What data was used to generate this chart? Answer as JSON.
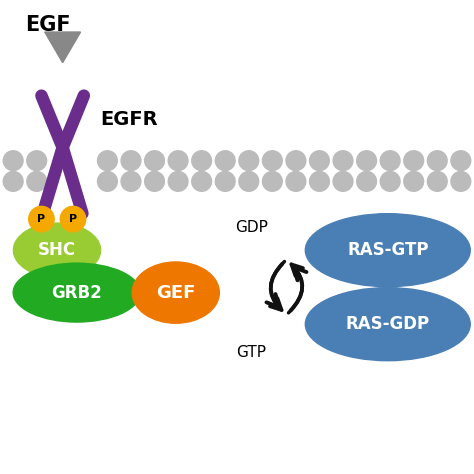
{
  "bg_color": "#ffffff",
  "egf_label": "EGF",
  "egfr_label": "EGFR",
  "shc_label": "SHC",
  "grb2_label": "GRB2",
  "gef_label": "GEF",
  "ras_gtp_label": "RAS-GTP",
  "ras_gdp_label": "RAS-GDP",
  "gdp_label": "GDP",
  "gtp_label": "GTP",
  "p_label": "P",
  "purple_color": "#6B2D8B",
  "gray_color": "#888888",
  "gold_color": "#F5A800",
  "shc_color": "#99CC33",
  "grb2_color": "#22AA22",
  "gef_color": "#EE7700",
  "ras_color": "#4A7FB5",
  "membrane_dot_color": "#BBBBBB",
  "arrow_color": "#111111"
}
